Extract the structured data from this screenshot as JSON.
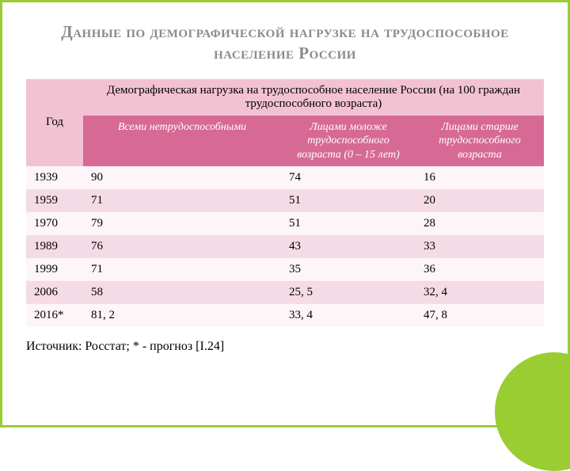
{
  "title": "Данные по демографической нагрузке на трудоспособное население России",
  "table": {
    "header_year": "Год",
    "header_group": "Демографическая нагрузка на трудоспособное население России (на 100 граждан трудоспособного возраста)",
    "sub_headers": [
      "Всеми нетрудоспособными",
      "Лицами моложе трудоспособного возраста (0 – 15 лет)",
      "Лицами старше трудоспособного возраста"
    ],
    "rows": [
      {
        "year": "1939",
        "c1": "90",
        "c2": "74",
        "c3": "16"
      },
      {
        "year": "1959",
        "c1": "71",
        "c2": "51",
        "c3": "20"
      },
      {
        "year": "1970",
        "c1": "79",
        "c2": "51",
        "c3": "28"
      },
      {
        "year": "1989",
        "c1": "76",
        "c2": "43",
        "c3": "33"
      },
      {
        "year": "1999",
        "c1": "71",
        "c2": "35",
        "c3": "36"
      },
      {
        "year": "2006",
        "c1": "58",
        "c2": "25, 5",
        "c3": "32, 4"
      },
      {
        "year": "2016*",
        "c1": "81, 2",
        "c2": "33, 4",
        "c3": "47, 8"
      }
    ]
  },
  "source": "Источник: Росстат; * - прогноз [I.24]",
  "colors": {
    "frame": "#9acd32",
    "header_pink": "#f2c2d3",
    "subheader_pink": "#d66a94",
    "row_light": "#fdf5f8",
    "row_dark": "#f5dbe5",
    "title_gray": "#8a8a8a"
  }
}
